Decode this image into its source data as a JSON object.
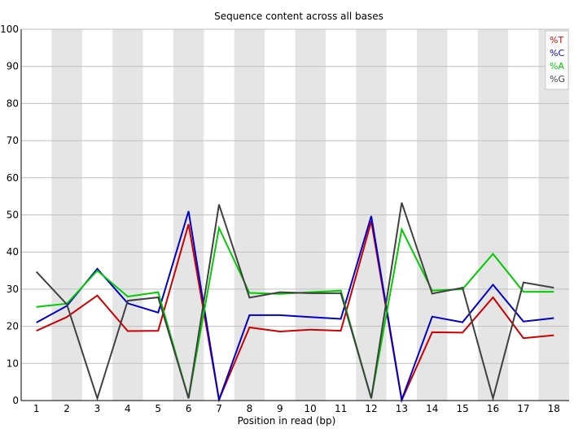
{
  "chart_data": {
    "type": "line",
    "title": "Sequence content across all bases",
    "xlabel": "Position in read (bp)",
    "ylabel": "",
    "ylim": [
      0,
      100
    ],
    "yticks": [
      0,
      10,
      20,
      30,
      40,
      50,
      60,
      70,
      80,
      90,
      100
    ],
    "categories": [
      "1",
      "2",
      "3",
      "4",
      "5",
      "6",
      "7",
      "8",
      "9",
      "10",
      "11",
      "12",
      "13",
      "14",
      "15",
      "16",
      "17",
      "18"
    ],
    "grid": "horizontal lines with alternating grey position bands",
    "legend_position": "top-right",
    "series": [
      {
        "name": "%T",
        "color": "#cc0000",
        "values": [
          18.8,
          22.5,
          28.3,
          18.7,
          18.8,
          47.5,
          0.2,
          19.7,
          18.6,
          19.1,
          18.8,
          48.3,
          0.1,
          18.4,
          18.3,
          27.8,
          16.8,
          17.6
        ]
      },
      {
        "name": "%C",
        "color": "#0000cc",
        "values": [
          21.0,
          25.5,
          35.5,
          26.2,
          23.7,
          51.0,
          0.2,
          23.0,
          23.0,
          22.5,
          22.0,
          49.7,
          0.2,
          22.6,
          21.1,
          31.2,
          21.3,
          22.2
        ]
      },
      {
        "name": "%A",
        "color": "#00cc00",
        "values": [
          25.2,
          26.1,
          35.0,
          28.0,
          29.2,
          0.6,
          46.5,
          29.0,
          28.7,
          29.2,
          29.6,
          0.6,
          46.1,
          29.6,
          30.0,
          39.5,
          29.3,
          29.3
        ]
      },
      {
        "name": "%G",
        "color": "#404040",
        "values": [
          34.7,
          25.9,
          0.6,
          26.9,
          27.8,
          0.6,
          52.8,
          27.7,
          29.2,
          28.9,
          28.9,
          0.6,
          53.3,
          28.8,
          30.4,
          0.6,
          31.8,
          30.4
        ]
      }
    ]
  }
}
